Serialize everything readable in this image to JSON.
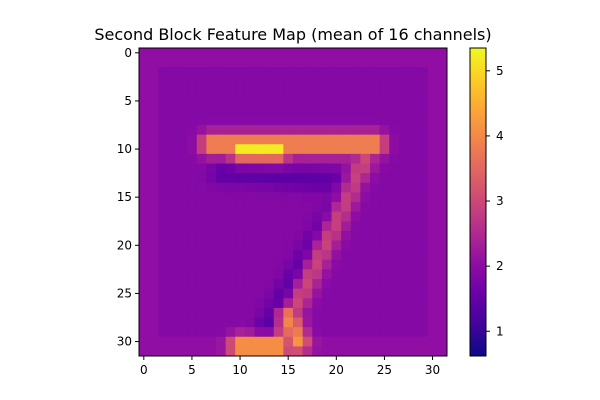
{
  "chart_data": {
    "type": "heatmap",
    "title": "Second Block Feature Map (mean of 16 channels)",
    "xlabel": "",
    "ylabel": "",
    "grid": false,
    "rows": 32,
    "cols": 32,
    "x_ticks": [
      0,
      5,
      10,
      15,
      20,
      25,
      30
    ],
    "y_ticks": [
      0,
      5,
      10,
      15,
      20,
      25,
      30
    ],
    "colormap": "plasma",
    "color_range": [
      0.62,
      5.35
    ],
    "colorbar": {
      "location": "right",
      "ticks": [
        1,
        2,
        3,
        4,
        5
      ]
    },
    "background_value": 1.9,
    "image_description": "mean activation map of a handwritten digit 7",
    "stroke_segments": [
      {
        "from": [
          7,
          9.5
        ],
        "to": [
          24,
          9.5
        ],
        "value": 4.2
      },
      {
        "from": [
          10,
          10
        ],
        "to": [
          14,
          10
        ],
        "value": 5.2
      },
      {
        "from": [
          23,
          11
        ],
        "to": [
          14,
          30
        ],
        "value": 3.0
      },
      {
        "from": [
          10,
          30.5
        ],
        "to": [
          14,
          30.5
        ],
        "value": 4.3
      },
      {
        "from": [
          15,
          27.5
        ],
        "to": [
          16,
          30
        ],
        "value": 4.0
      }
    ],
    "dark_segments": [
      {
        "from": [
          8,
          12.5
        ],
        "to": [
          22,
          13.5
        ],
        "value": 1.4
      },
      {
        "from": [
          21,
          14
        ],
        "to": [
          12,
          30
        ],
        "value": 1.2
      }
    ]
  }
}
